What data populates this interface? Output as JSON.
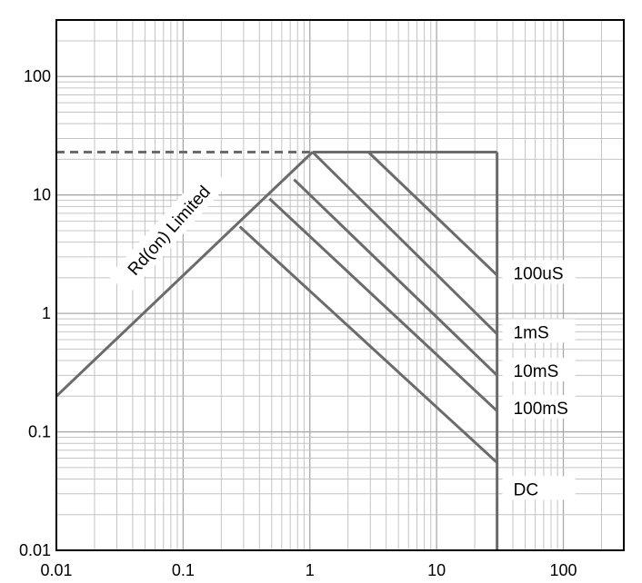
{
  "chart_data": {
    "type": "line",
    "title": "",
    "xlabel": "",
    "ylabel": "",
    "xscale": "log",
    "yscale": "log",
    "xlim": [
      0.01,
      300
    ],
    "ylim": [
      0.01,
      300
    ],
    "grid": true,
    "x_ticks": [
      0.01,
      0.1,
      1,
      10,
      100
    ],
    "x_tick_labels": [
      "0.01",
      "0.1",
      "1",
      "10",
      "100"
    ],
    "y_ticks": [
      0.01,
      0.1,
      1,
      10,
      100
    ],
    "y_tick_labels": [
      "0.01",
      "0.1",
      "1",
      "10",
      "100"
    ],
    "annotation": "Rd(on) Limited",
    "current_limit_dashed": {
      "x": [
        0.01,
        1.05
      ],
      "y": [
        23,
        23
      ]
    },
    "current_limit_solid": {
      "x": [
        1.05,
        30
      ],
      "y": [
        23,
        23
      ]
    },
    "voltage_limit": {
      "x": [
        30,
        30
      ],
      "y": [
        0.01,
        23
      ]
    },
    "rdson_line": {
      "x": [
        0.01,
        1.05
      ],
      "y": [
        0.2,
        23
      ]
    },
    "series": [
      {
        "name": "100uS",
        "label_y": 2.2,
        "x": [
          2.9,
          30
        ],
        "y": [
          23,
          2.1
        ]
      },
      {
        "name": "1mS",
        "label_y": 0.7,
        "x": [
          1.05,
          30
        ],
        "y": [
          23,
          0.67
        ]
      },
      {
        "name": "10mS",
        "label_y": 0.33,
        "x": [
          0.75,
          30
        ],
        "y": [
          13.5,
          0.3
        ]
      },
      {
        "name": "100mS",
        "label_y": 0.16,
        "x": [
          0.48,
          30
        ],
        "y": [
          9.3,
          0.15
        ]
      },
      {
        "name": "DC",
        "label_y": 0.033,
        "x": [
          0.28,
          30
        ],
        "y": [
          5.4,
          0.055
        ]
      }
    ]
  }
}
